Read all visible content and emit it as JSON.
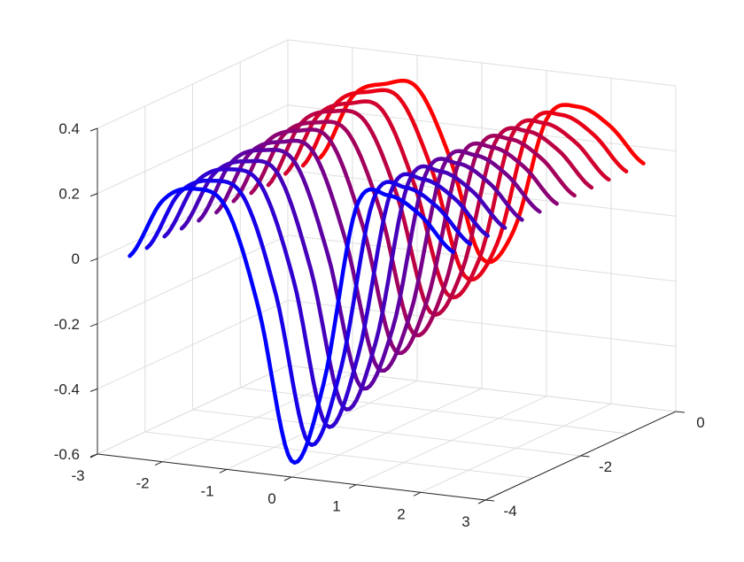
{
  "chart_data": {
    "type": "line",
    "projection": "3d",
    "title": "",
    "xlabel": "",
    "ylabel": "",
    "zlabel": "",
    "xlim": [
      -3,
      3
    ],
    "ylim": [
      -4,
      0
    ],
    "zlim": [
      -0.6,
      0.4
    ],
    "xticks": [
      -3,
      -2,
      -1,
      0,
      1,
      2,
      3
    ],
    "yticks": [
      -4,
      -2,
      0
    ],
    "zticks": [
      -0.6,
      -0.4,
      -0.2,
      0,
      0.2,
      0.4
    ],
    "xtick_labels": [
      "-3",
      "-2",
      "-1",
      "0",
      "1",
      "2",
      "3"
    ],
    "ytick_labels": [
      "-4",
      "-2",
      "0"
    ],
    "ztick_labels": [
      "-0.6",
      "-0.4",
      "-0.2",
      "0",
      "0.2",
      "0.4"
    ],
    "grid": true,
    "colormap": {
      "front": "#0000ff",
      "back": "#ff0000"
    },
    "x": [
      -2.5,
      -2,
      -1.5,
      -1,
      -0.5,
      0,
      0.5,
      1,
      1.5,
      2,
      2.5
    ],
    "series": [
      {
        "y": -4.0,
        "z": [
          0.02,
          0.2,
          0.25,
          0.2,
          -0.1,
          -0.55,
          -0.3,
          0.25,
          0.3,
          0.25,
          0.15
        ]
      },
      {
        "y": -3.64,
        "z": [
          0.02,
          0.2,
          0.25,
          0.21,
          -0.08,
          -0.52,
          -0.28,
          0.25,
          0.3,
          0.25,
          0.15
        ]
      },
      {
        "y": -3.27,
        "z": [
          0.03,
          0.21,
          0.26,
          0.22,
          -0.06,
          -0.49,
          -0.26,
          0.25,
          0.3,
          0.25,
          0.15
        ]
      },
      {
        "y": -2.91,
        "z": [
          0.03,
          0.21,
          0.26,
          0.23,
          -0.05,
          -0.46,
          -0.25,
          0.25,
          0.3,
          0.25,
          0.15
        ]
      },
      {
        "y": -2.55,
        "z": [
          0.03,
          0.22,
          0.27,
          0.24,
          -0.03,
          -0.42,
          -0.23,
          0.25,
          0.3,
          0.25,
          0.15
        ]
      },
      {
        "y": -2.18,
        "z": [
          0.03,
          0.22,
          0.27,
          0.25,
          -0.01,
          -0.39,
          -0.21,
          0.25,
          0.3,
          0.25,
          0.15
        ]
      },
      {
        "y": -1.82,
        "z": [
          0.04,
          0.23,
          0.28,
          0.26,
          0.01,
          -0.36,
          -0.19,
          0.25,
          0.3,
          0.25,
          0.15
        ]
      },
      {
        "y": -1.45,
        "z": [
          0.04,
          0.23,
          0.28,
          0.26,
          0.03,
          -0.33,
          -0.17,
          0.25,
          0.3,
          0.25,
          0.15
        ]
      },
      {
        "y": -1.09,
        "z": [
          0.04,
          0.24,
          0.29,
          0.27,
          0.05,
          -0.29,
          -0.15,
          0.25,
          0.3,
          0.25,
          0.15
        ]
      },
      {
        "y": -0.73,
        "z": [
          0.05,
          0.24,
          0.29,
          0.28,
          0.06,
          -0.26,
          -0.14,
          0.25,
          0.3,
          0.25,
          0.15
        ]
      },
      {
        "y": -0.36,
        "z": [
          0.05,
          0.25,
          0.3,
          0.29,
          0.08,
          -0.23,
          -0.12,
          0.25,
          0.3,
          0.25,
          0.15
        ]
      },
      {
        "y": 0.0,
        "z": [
          0.05,
          0.25,
          0.3,
          0.3,
          0.1,
          -0.2,
          -0.1,
          0.25,
          0.3,
          0.25,
          0.15
        ]
      }
    ]
  }
}
